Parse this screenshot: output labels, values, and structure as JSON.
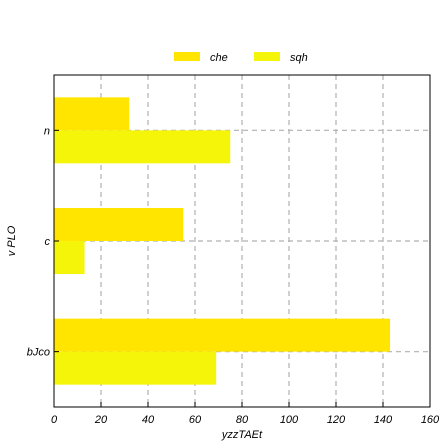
{
  "chart_data": {
    "type": "bar",
    "orientation": "horizontal",
    "categories": [
      "bJco",
      "c",
      "n"
    ],
    "series": [
      {
        "name": "che",
        "values": [
          143,
          55,
          32
        ],
        "color": "#ffe500"
      },
      {
        "name": "sqh",
        "values": [
          69,
          13,
          75
        ],
        "color": "#f5f50a"
      }
    ],
    "xlabel": "yzzTAEt",
    "ylabel": "v PLO",
    "xlim": [
      0,
      160
    ],
    "xticks": [
      0,
      20,
      40,
      60,
      80,
      100,
      120,
      140,
      160
    ],
    "grid": true,
    "legend_position": "top-center"
  }
}
